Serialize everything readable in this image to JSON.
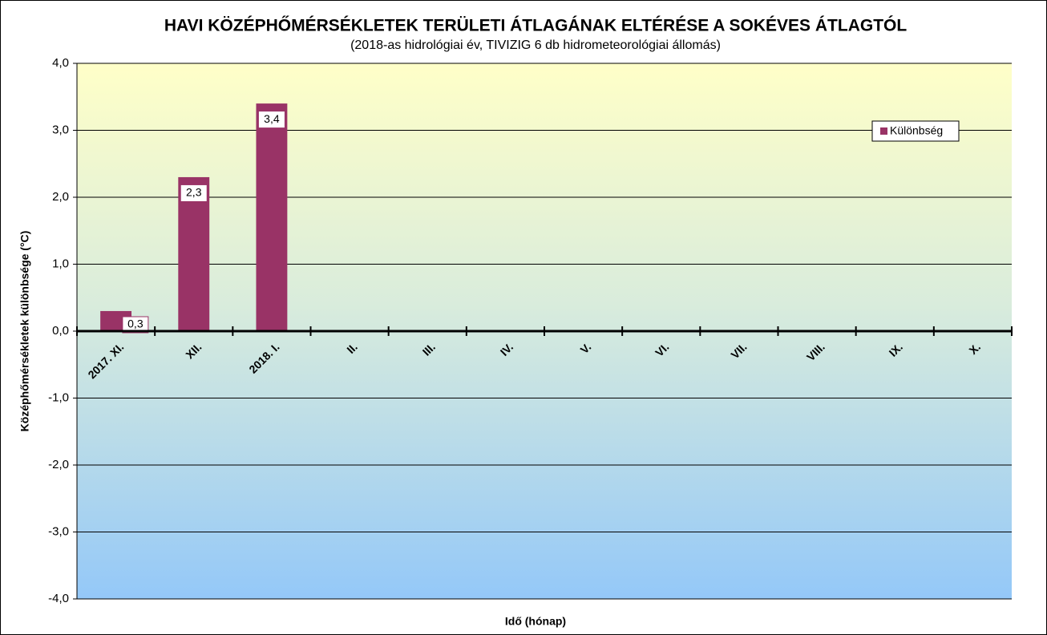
{
  "chart_data": {
    "type": "bar",
    "title": "HAVI KÖZÉPHŐMÉRSÉKLETEK TERÜLETI ÁTLAGÁNAK ELTÉRÉSE A SOKÉVES ÁTLAGTÓL",
    "subtitle": "(2018-as hidrológiai év, TIVIZIG  6 db hidrometeorológiai állomás)",
    "x_label": "Idő (hónap)",
    "y_label": "Középhőmérsékletek különbsége (°C)",
    "categories": [
      "2017. XI.",
      "XII.",
      "2018. I.",
      "II.",
      "III.",
      "IV.",
      "V.",
      "VI.",
      "VII.",
      "VIII.",
      "IX.",
      "X."
    ],
    "series": [
      {
        "name": "Különbség",
        "color": "#993366",
        "values": [
          0.3,
          2.3,
          3.4,
          null,
          null,
          null,
          null,
          null,
          null,
          null,
          null,
          null
        ],
        "value_labels": [
          "0,3",
          "2,3",
          "3,4",
          null,
          null,
          null,
          null,
          null,
          null,
          null,
          null,
          null
        ]
      }
    ],
    "ylim": [
      -4,
      4
    ],
    "yticks": [
      {
        "value": -4,
        "label": "-4,0"
      },
      {
        "value": -3,
        "label": "-3,0"
      },
      {
        "value": -2,
        "label": "-2,0"
      },
      {
        "value": -1,
        "label": "-1,0"
      },
      {
        "value": 0,
        "label": "0,0"
      },
      {
        "value": 1,
        "label": "1,0"
      },
      {
        "value": 2,
        "label": "2,0"
      },
      {
        "value": 3,
        "label": "3,0"
      },
      {
        "value": 4,
        "label": "4,0"
      }
    ],
    "grid": true,
    "legend": "upper right"
  }
}
